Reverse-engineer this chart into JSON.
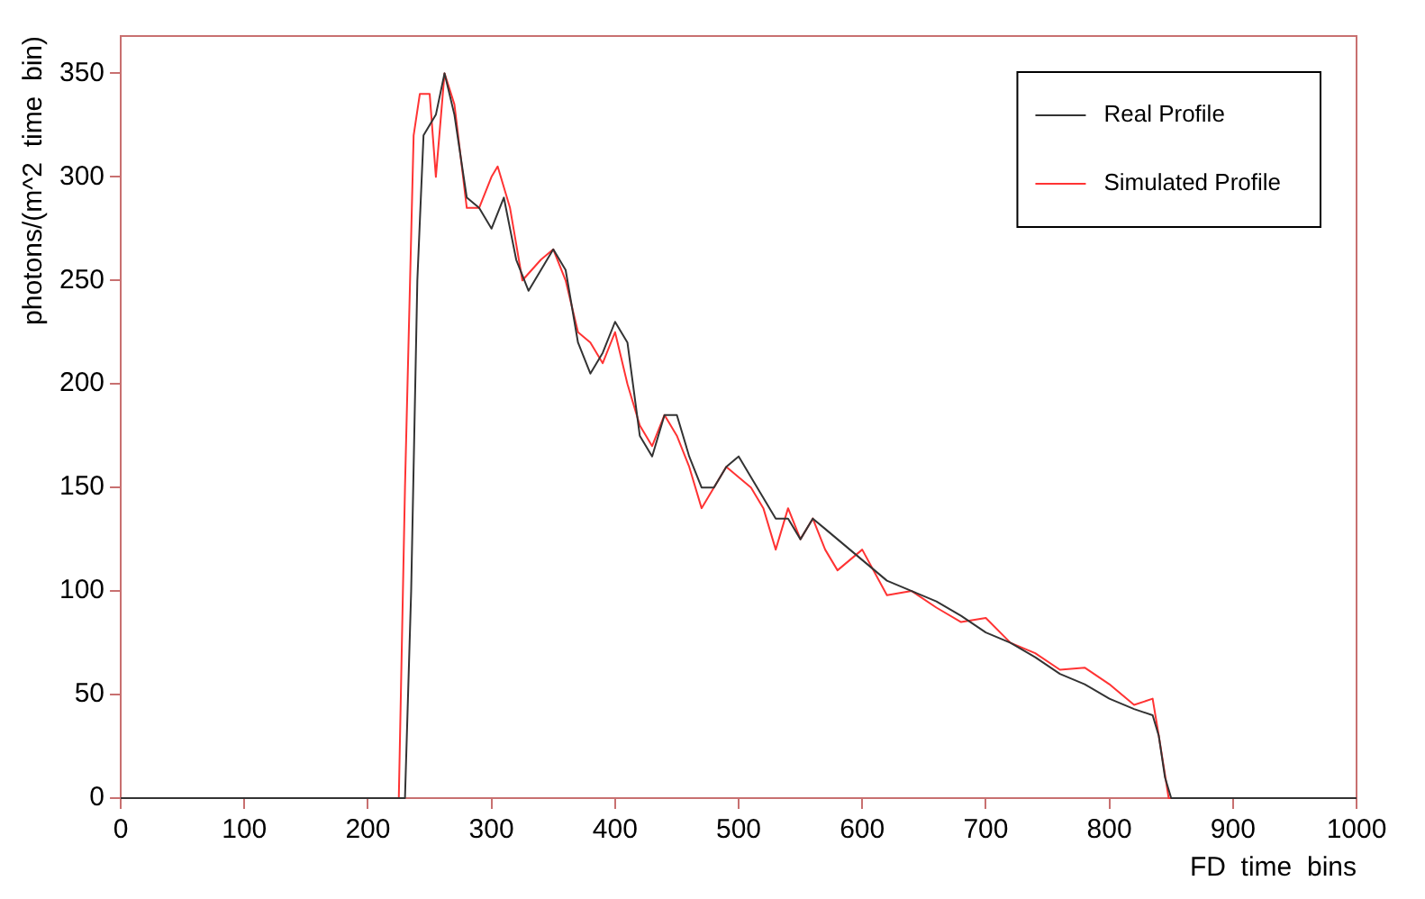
{
  "chart_data": {
    "type": "line",
    "xlabel": "FD  time  bins",
    "ylabel": "photons/(m^2  time  bin)",
    "xlim": [
      0,
      1000
    ],
    "ylim": [
      0,
      368
    ],
    "xticks": [
      0,
      100,
      200,
      300,
      400,
      500,
      600,
      700,
      800,
      900,
      1000
    ],
    "yticks": [
      0,
      50,
      100,
      150,
      200,
      250,
      300,
      350
    ],
    "grid": false,
    "legend": "top right",
    "marker": "none",
    "line_style": "solid",
    "series": [
      {
        "name": "Real Profile",
        "color": "#333333",
        "x": [
          0,
          225,
          230,
          235,
          240,
          245,
          255,
          262,
          270,
          280,
          290,
          300,
          310,
          320,
          330,
          340,
          350,
          360,
          370,
          380,
          390,
          400,
          410,
          420,
          430,
          440,
          450,
          460,
          470,
          480,
          490,
          500,
          510,
          520,
          530,
          540,
          550,
          560,
          570,
          580,
          600,
          620,
          640,
          660,
          680,
          700,
          720,
          740,
          760,
          780,
          800,
          820,
          835,
          840,
          845,
          850,
          1000
        ],
        "values": [
          0,
          0,
          0,
          100,
          250,
          320,
          330,
          350,
          330,
          290,
          285,
          275,
          290,
          260,
          245,
          255,
          265,
          255,
          220,
          205,
          215,
          230,
          220,
          175,
          165,
          185,
          185,
          165,
          150,
          150,
          160,
          165,
          155,
          145,
          135,
          135,
          125,
          135,
          130,
          125,
          115,
          105,
          100,
          95,
          88,
          80,
          75,
          68,
          60,
          55,
          48,
          43,
          40,
          30,
          10,
          0,
          0
        ]
      },
      {
        "name": "Simulated Profile",
        "color": "#ff3333",
        "x": [
          0,
          225,
          230,
          237,
          242,
          250,
          255,
          262,
          270,
          280,
          290,
          300,
          305,
          315,
          325,
          340,
          350,
          360,
          370,
          380,
          390,
          400,
          410,
          420,
          430,
          440,
          450,
          460,
          470,
          480,
          490,
          500,
          510,
          520,
          530,
          540,
          550,
          560,
          570,
          580,
          600,
          620,
          640,
          660,
          680,
          700,
          720,
          740,
          760,
          780,
          800,
          820,
          835,
          840,
          848,
          1000
        ],
        "values": [
          0,
          0,
          150,
          320,
          340,
          340,
          300,
          350,
          335,
          285,
          285,
          300,
          305,
          285,
          250,
          260,
          265,
          250,
          225,
          220,
          210,
          225,
          200,
          180,
          170,
          185,
          175,
          160,
          140,
          150,
          160,
          155,
          150,
          140,
          120,
          140,
          125,
          135,
          120,
          110,
          120,
          98,
          100,
          92,
          85,
          87,
          75,
          70,
          62,
          63,
          55,
          45,
          48,
          30,
          0,
          0
        ]
      }
    ]
  }
}
